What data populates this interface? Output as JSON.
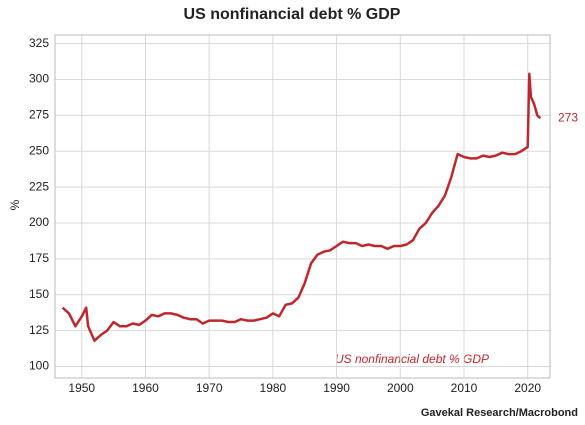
{
  "chart_data": {
    "type": "line",
    "title": "US nonfinancial debt % GDP",
    "y_label": "%",
    "source": "Gavekal Research/Macrobond",
    "annotation": "US nonfinancial debt % GDP",
    "x": [
      1947,
      1948,
      1949,
      1950,
      1950.7,
      1951,
      1952,
      1953,
      1954,
      1955,
      1956,
      1957,
      1958,
      1959,
      1960,
      1961,
      1962,
      1963,
      1964,
      1965,
      1966,
      1967,
      1968,
      1969,
      1970,
      1971,
      1972,
      1973,
      1974,
      1975,
      1976,
      1977,
      1978,
      1979,
      1980,
      1981,
      1982,
      1983,
      1984,
      1985,
      1986,
      1987,
      1988,
      1989,
      1990,
      1991,
      1992,
      1993,
      1994,
      1995,
      1996,
      1997,
      1998,
      1999,
      2000,
      2001,
      2002,
      2003,
      2004,
      2005,
      2006,
      2007,
      2008,
      2009,
      2010,
      2011,
      2012,
      2013,
      2014,
      2015,
      2016,
      2017,
      2018,
      2019,
      2020,
      2020.25,
      2020.5,
      2021,
      2021.5,
      2022
    ],
    "series": [
      {
        "name": "US nonfinancial debt % GDP",
        "color": "#c0272d",
        "values": [
          141,
          137,
          128,
          135,
          141,
          128,
          118,
          122,
          125,
          131,
          128,
          128,
          130,
          129,
          132,
          136,
          135,
          137,
          137,
          136,
          134,
          133,
          133,
          130,
          132,
          132,
          132,
          131,
          131,
          133,
          132,
          132,
          133,
          134,
          137,
          135,
          143,
          144,
          148,
          158,
          172,
          178,
          180,
          181,
          184,
          187,
          186,
          186,
          184,
          185,
          184,
          184,
          182,
          184,
          184,
          185,
          188,
          196,
          200,
          207,
          212,
          219,
          232,
          248,
          246,
          245,
          245,
          247,
          246,
          247,
          249,
          248,
          248,
          250,
          253,
          304,
          288,
          283,
          275,
          273
        ]
      }
    ],
    "xlim": [
      1945.8,
      2023.5
    ],
    "xticks": [
      1950,
      1960,
      1970,
      1980,
      1990,
      2000,
      2010,
      2020
    ],
    "ylim": [
      92,
      331
    ],
    "yticks": [
      100,
      125,
      150,
      175,
      200,
      225,
      250,
      275,
      300,
      325
    ],
    "grid": true
  }
}
